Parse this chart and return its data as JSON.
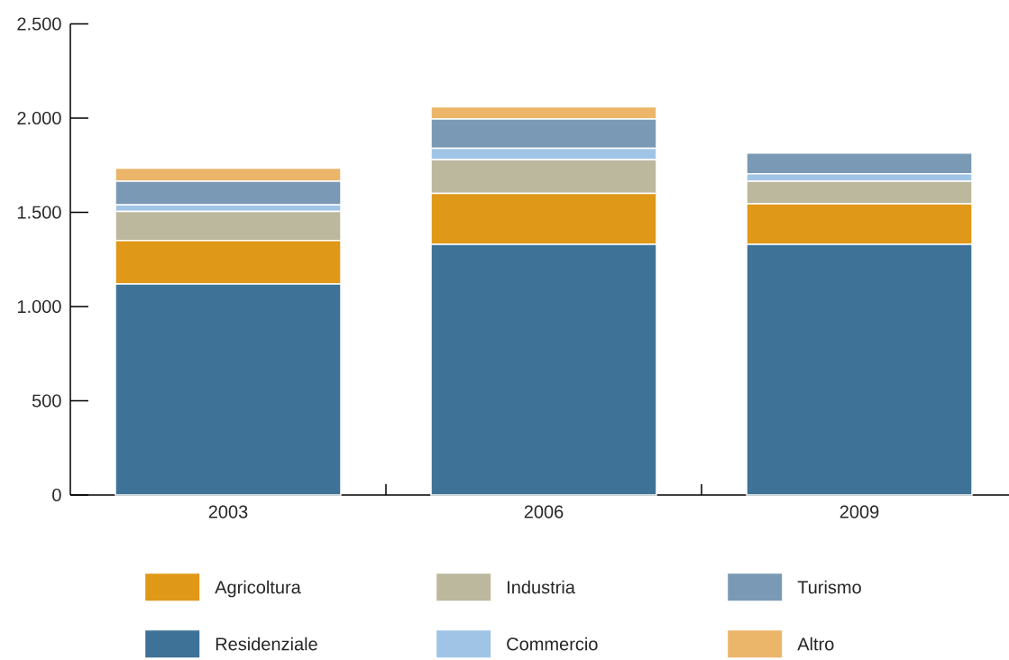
{
  "chart_data": {
    "type": "bar",
    "stacked": true,
    "categories": [
      "2003",
      "2006",
      "2009"
    ],
    "series": [
      {
        "name": "Residenziale",
        "color": "#3f7297",
        "values": [
          1120,
          1330,
          1330
        ]
      },
      {
        "name": "Agricoltura",
        "color": "#e09818",
        "values": [
          230,
          270,
          215
        ]
      },
      {
        "name": "Industria",
        "color": "#bcb89e",
        "values": [
          155,
          180,
          120
        ]
      },
      {
        "name": "Commercio",
        "color": "#a0c4e6",
        "values": [
          35,
          60,
          40
        ]
      },
      {
        "name": "Turismo",
        "color": "#7a99b5",
        "values": [
          125,
          155,
          110
        ]
      },
      {
        "name": "Altro",
        "color": "#ebb56a",
        "values": [
          70,
          65,
          null
        ]
      }
    ],
    "ylim": [
      0,
      2500
    ],
    "yticks": [
      0,
      500,
      {
        "value": 1000,
        "label": "1.000"
      },
      {
        "value": 1500,
        "label": "1.500"
      },
      {
        "value": 2000,
        "label": "2.000"
      },
      {
        "value": 2500,
        "label": "2.500"
      }
    ],
    "legend": "bottom"
  }
}
